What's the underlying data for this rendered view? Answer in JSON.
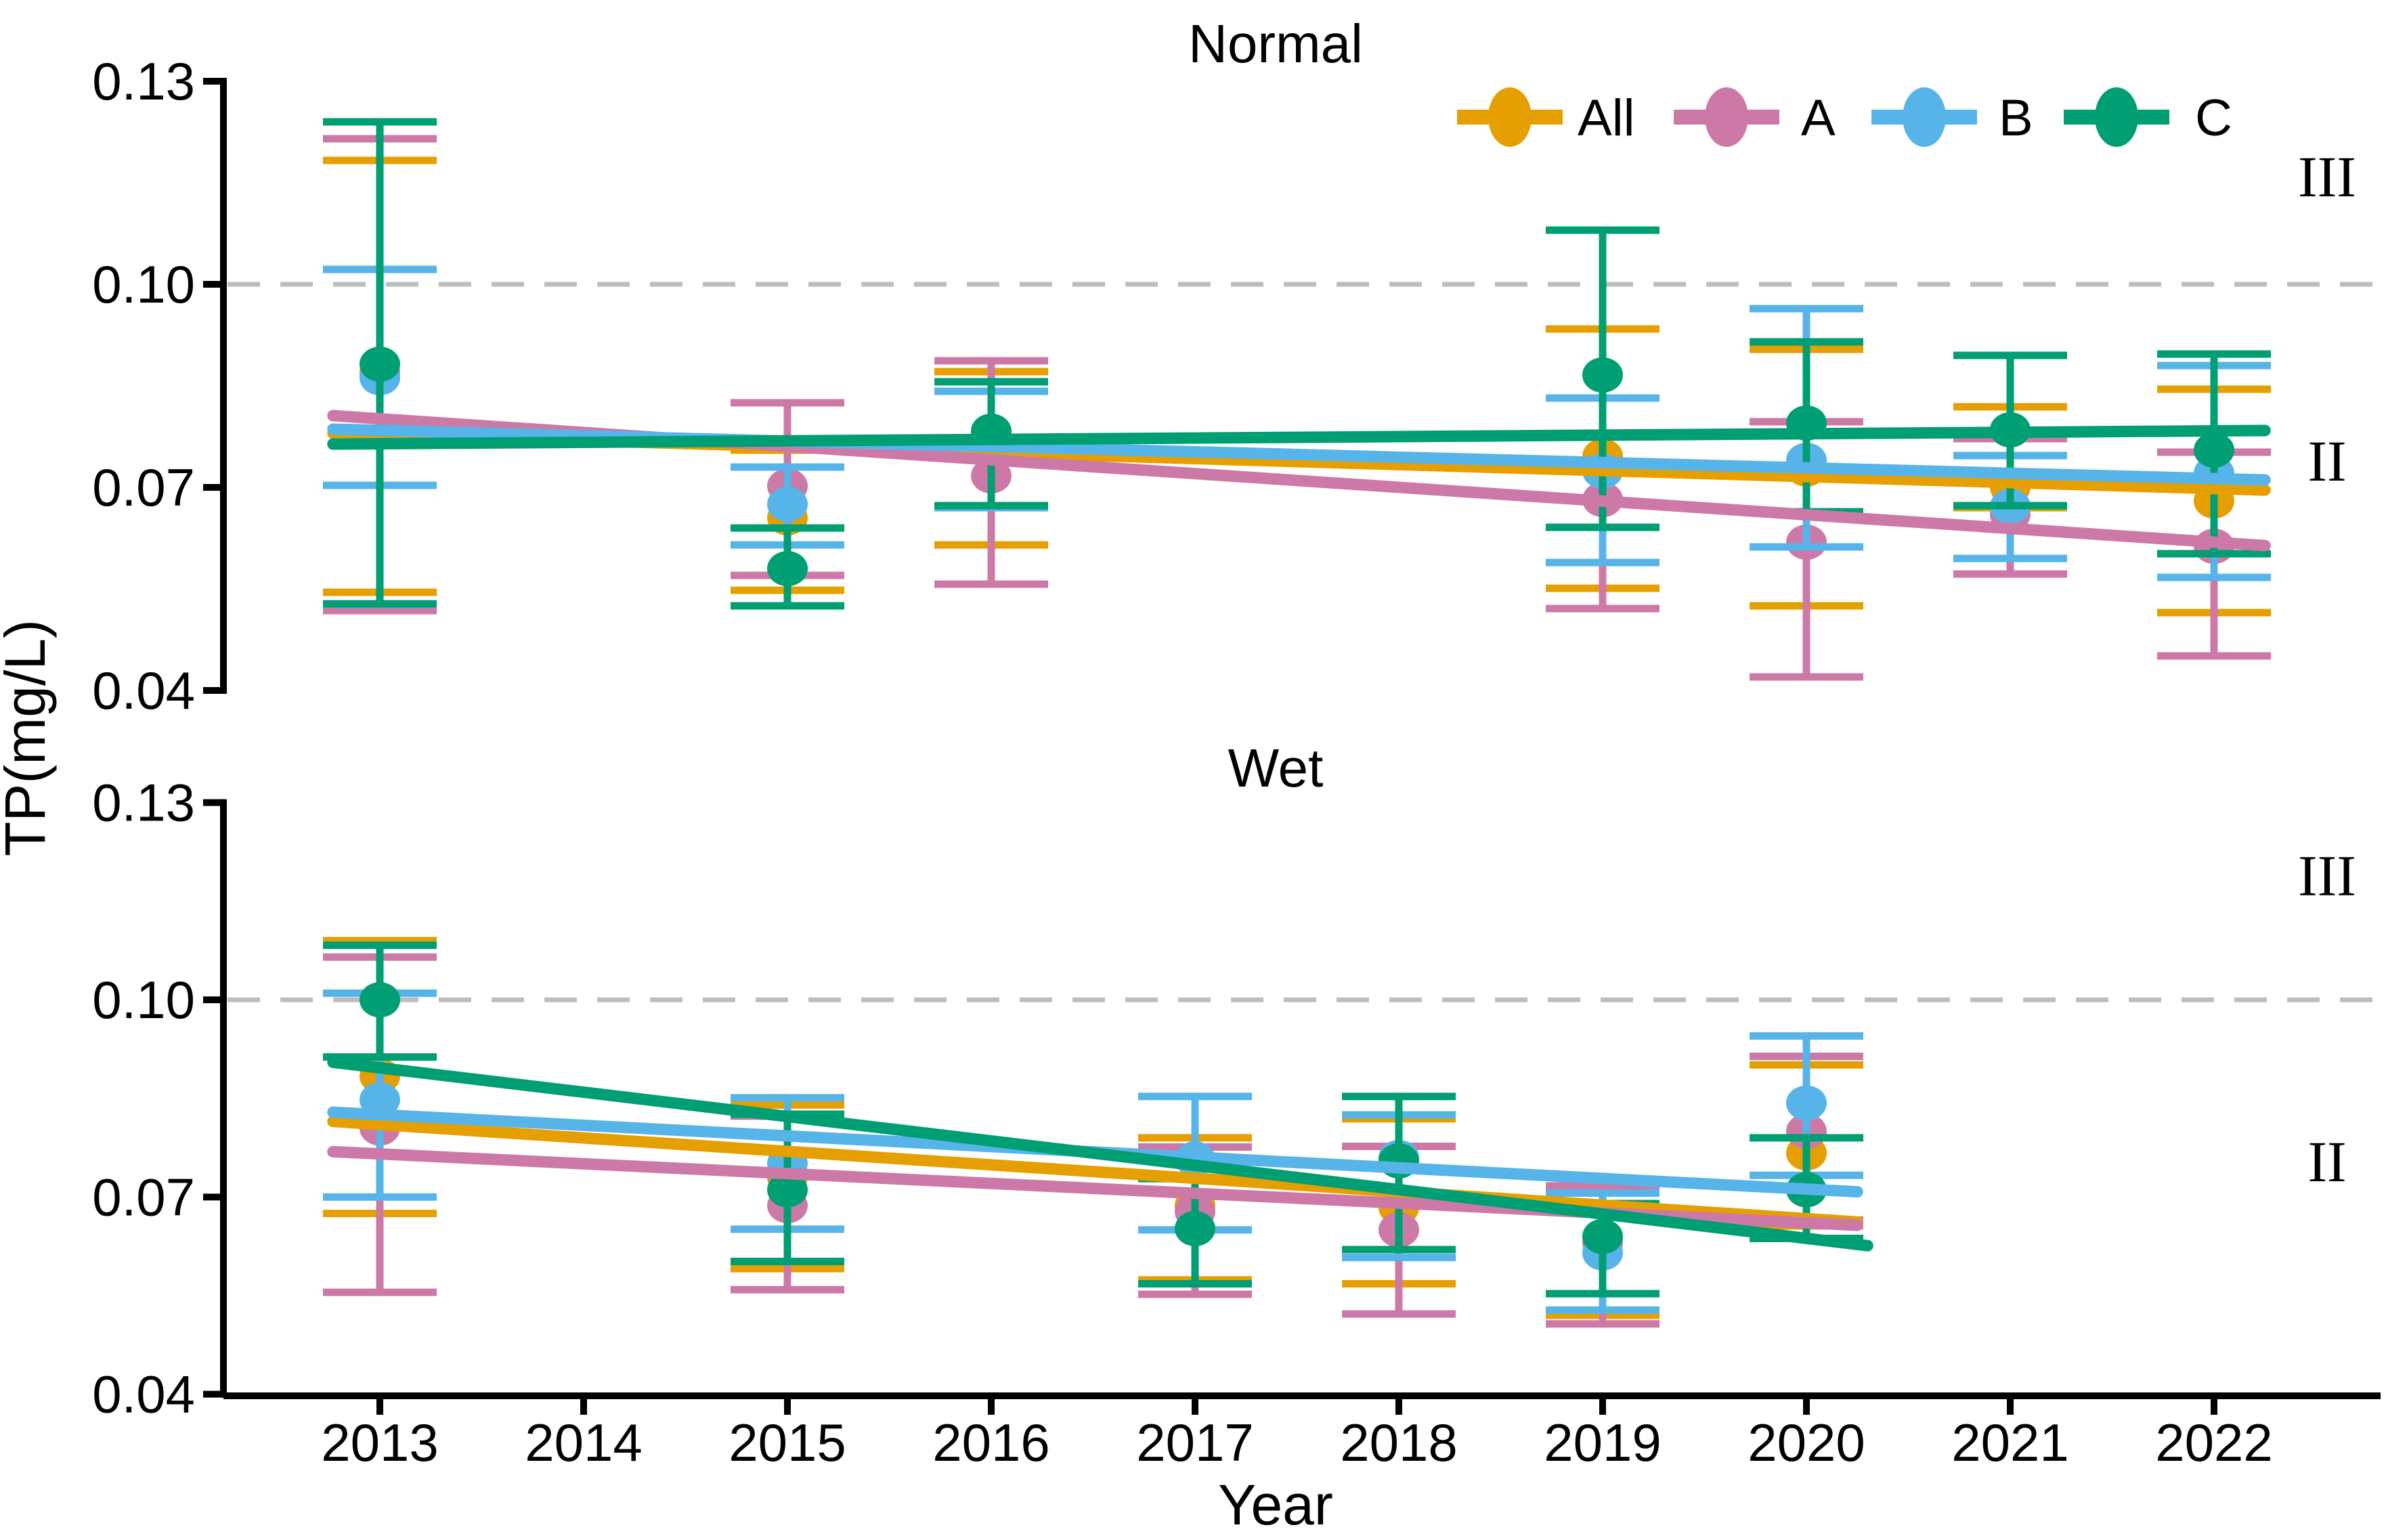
{
  "figure_title": "",
  "ylabel": "TP(mg/L)",
  "xlabel": "Year",
  "reference_color": "#BDBDBD",
  "legend": {
    "items": [
      {
        "label": "All",
        "color": "#E69F00"
      },
      {
        "label": "A",
        "color": "#CC79A7"
      },
      {
        "label": "B",
        "color": "#56B4E9"
      },
      {
        "label": "C",
        "color": "#009E73"
      }
    ]
  },
  "chart_data": [
    {
      "type": "scatter",
      "title": "Normal",
      "xlabel": "Year",
      "ylabel": "TP(mg/L)",
      "ylim": [
        0.04,
        0.13
      ],
      "grid": false,
      "legend_position": "top-right",
      "yticks": [
        {
          "label": "0.13",
          "value": 0.13
        },
        {
          "label": "0.10",
          "value": 0.1
        },
        {
          "label": "0.07",
          "value": 0.07
        },
        {
          "label": "0.04",
          "value": 0.04
        }
      ],
      "xticks": [
        2013,
        2014,
        2015,
        2016,
        2017,
        2018,
        2019,
        2020,
        2021,
        2022
      ],
      "reference_line": 0.1,
      "zone_labels": [
        {
          "text": "III",
          "y": 0.116
        },
        {
          "text": "II",
          "y": 0.074
        }
      ],
      "series": [
        {
          "name": "All",
          "color": "#E69F00",
          "points": [
            {
              "x": 2013,
              "y": 0.087,
              "lo": 0.0545,
              "hi": 0.1183
            },
            {
              "x": 2015,
              "y": 0.0655,
              "lo": 0.0548,
              "hi": 0.0755
            },
            {
              "x": 2016,
              "y": 0.0751,
              "lo": 0.0615,
              "hi": 0.0871
            },
            {
              "x": 2019,
              "y": 0.0746,
              "lo": 0.0551,
              "hi": 0.0934
            },
            {
              "x": 2020,
              "y": 0.0727,
              "lo": 0.0525,
              "hi": 0.0904
            },
            {
              "x": 2021,
              "y": 0.07,
              "lo": 0.067,
              "hi": 0.0819
            },
            {
              "x": 2022,
              "y": 0.068,
              "lo": 0.0515,
              "hi": 0.0845
            }
          ],
          "trend": {
            "x1": 2012.77,
            "y1": 0.078,
            "x2": 2022.25,
            "y2": 0.0696
          }
        },
        {
          "name": "A",
          "color": "#CC79A7",
          "points": [
            {
              "x": 2013,
              "y": 0.0868,
              "lo": 0.0518,
              "hi": 0.1215
            },
            {
              "x": 2015,
              "y": 0.0702,
              "lo": 0.057,
              "hi": 0.0825
            },
            {
              "x": 2016,
              "y": 0.0717,
              "lo": 0.0557,
              "hi": 0.0887
            },
            {
              "x": 2019,
              "y": 0.0682,
              "lo": 0.0521,
              "hi": 0.0832
            },
            {
              "x": 2020,
              "y": 0.0619,
              "lo": 0.042,
              "hi": 0.0797
            },
            {
              "x": 2021,
              "y": 0.066,
              "lo": 0.0572,
              "hi": 0.0772
            },
            {
              "x": 2022,
              "y": 0.0613,
              "lo": 0.0451,
              "hi": 0.0752
            }
          ],
          "trend": {
            "x1": 2012.77,
            "y1": 0.0806,
            "x2": 2022.25,
            "y2": 0.0614
          }
        },
        {
          "name": "B",
          "color": "#56B4E9",
          "points": [
            {
              "x": 2013,
              "y": 0.0862,
              "lo": 0.0703,
              "hi": 0.1022
            },
            {
              "x": 2015,
              "y": 0.0675,
              "lo": 0.0615,
              "hi": 0.073
            },
            {
              "x": 2016,
              "y": 0.0762,
              "lo": 0.067,
              "hi": 0.0842
            },
            {
              "x": 2019,
              "y": 0.0724,
              "lo": 0.0589,
              "hi": 0.0832
            },
            {
              "x": 2020,
              "y": 0.074,
              "lo": 0.0612,
              "hi": 0.0964
            },
            {
              "x": 2021,
              "y": 0.0672,
              "lo": 0.0595,
              "hi": 0.0747
            },
            {
              "x": 2022,
              "y": 0.0721,
              "lo": 0.0567,
              "hi": 0.088
            }
          ],
          "trend": {
            "x1": 2012.77,
            "y1": 0.0786,
            "x2": 2022.25,
            "y2": 0.0711
          }
        },
        {
          "name": "C",
          "color": "#009E73",
          "points": [
            {
              "x": 2013,
              "y": 0.0882,
              "lo": 0.0528,
              "hi": 0.124
            },
            {
              "x": 2015,
              "y": 0.058,
              "lo": 0.0525,
              "hi": 0.064
            },
            {
              "x": 2016,
              "y": 0.0783,
              "lo": 0.0673,
              "hi": 0.0856
            },
            {
              "x": 2019,
              "y": 0.0866,
              "lo": 0.0641,
              "hi": 0.108
            },
            {
              "x": 2020,
              "y": 0.0795,
              "lo": 0.0664,
              "hi": 0.0915
            },
            {
              "x": 2021,
              "y": 0.0785,
              "lo": 0.0673,
              "hi": 0.0895
            },
            {
              "x": 2022,
              "y": 0.0755,
              "lo": 0.0602,
              "hi": 0.0897
            }
          ],
          "trend": {
            "x1": 2012.77,
            "y1": 0.0764,
            "x2": 2022.25,
            "y2": 0.0784
          }
        }
      ]
    },
    {
      "type": "scatter",
      "title": "Wet",
      "xlabel": "Year",
      "ylabel": "TP(mg/L)",
      "ylim": [
        0.04,
        0.13
      ],
      "grid": false,
      "yticks": [
        {
          "label": "0.13",
          "value": 0.13
        },
        {
          "label": "0.10",
          "value": 0.1
        },
        {
          "label": "0.07",
          "value": 0.07
        },
        {
          "label": "0.04",
          "value": 0.04
        }
      ],
      "xticks": [
        2013,
        2014,
        2015,
        2016,
        2017,
        2018,
        2019,
        2020,
        2021,
        2022
      ],
      "reference_line": 0.1,
      "zone_labels": [
        {
          "text": "III",
          "y": 0.119
        },
        {
          "text": "II",
          "y": 0.0755
        }
      ],
      "series": [
        {
          "name": "All",
          "color": "#E69F00",
          "points": [
            {
              "x": 2013,
              "y": 0.0884,
              "lo": 0.0675,
              "hi": 0.109
            },
            {
              "x": 2015,
              "y": 0.073,
              "lo": 0.0591,
              "hi": 0.084
            },
            {
              "x": 2017,
              "y": 0.0687,
              "lo": 0.0574,
              "hi": 0.079
            },
            {
              "x": 2018,
              "y": 0.0684,
              "lo": 0.0568,
              "hi": 0.0819
            },
            {
              "x": 2019,
              "y": 0.0638,
              "lo": 0.052,
              "hi": 0.0712
            },
            {
              "x": 2020,
              "y": 0.0767,
              "lo": 0.0656,
              "hi": 0.0901
            }
          ],
          "trend": {
            "x1": 2012.77,
            "y1": 0.0815,
            "x2": 2020.25,
            "y2": 0.0662
          }
        },
        {
          "name": "A",
          "color": "#CC79A7",
          "points": [
            {
              "x": 2013,
              "y": 0.0805,
              "lo": 0.0555,
              "hi": 0.1065
            },
            {
              "x": 2015,
              "y": 0.0687,
              "lo": 0.0559,
              "hi": 0.0823
            },
            {
              "x": 2017,
              "y": 0.0678,
              "lo": 0.0552,
              "hi": 0.0776
            },
            {
              "x": 2018,
              "y": 0.065,
              "lo": 0.0522,
              "hi": 0.0777
            },
            {
              "x": 2019,
              "y": 0.063,
              "lo": 0.0507,
              "hi": 0.0717
            },
            {
              "x": 2020,
              "y": 0.08,
              "lo": 0.0665,
              "hi": 0.0914
            }
          ],
          "trend": {
            "x1": 2012.77,
            "y1": 0.0769,
            "x2": 2020.25,
            "y2": 0.0657
          }
        },
        {
          "name": "B",
          "color": "#56B4E9",
          "points": [
            {
              "x": 2013,
              "y": 0.0848,
              "lo": 0.07,
              "hi": 0.101
            },
            {
              "x": 2015,
              "y": 0.0751,
              "lo": 0.0651,
              "hi": 0.0851
            },
            {
              "x": 2017,
              "y": 0.0758,
              "lo": 0.065,
              "hi": 0.0853
            },
            {
              "x": 2018,
              "y": 0.076,
              "lo": 0.0608,
              "hi": 0.0825
            },
            {
              "x": 2019,
              "y": 0.0615,
              "lo": 0.0528,
              "hi": 0.0706
            },
            {
              "x": 2020,
              "y": 0.0843,
              "lo": 0.0733,
              "hi": 0.0945
            }
          ],
          "trend": {
            "x1": 2012.77,
            "y1": 0.0829,
            "x2": 2020.25,
            "y2": 0.0708
          }
        },
        {
          "name": "C",
          "color": "#009E73",
          "points": [
            {
              "x": 2013,
              "y": 0.1,
              "lo": 0.0913,
              "hi": 0.1083
            },
            {
              "x": 2015,
              "y": 0.0711,
              "lo": 0.0602,
              "hi": 0.0826
            },
            {
              "x": 2017,
              "y": 0.0652,
              "lo": 0.0568,
              "hi": 0.0728
            },
            {
              "x": 2018,
              "y": 0.0755,
              "lo": 0.062,
              "hi": 0.0853
            },
            {
              "x": 2019,
              "y": 0.064,
              "lo": 0.0553,
              "hi": 0.069
            },
            {
              "x": 2020,
              "y": 0.0711,
              "lo": 0.0637,
              "hi": 0.079
            }
          ],
          "trend": {
            "x1": 2012.77,
            "y1": 0.0905,
            "x2": 2020.3,
            "y2": 0.0626
          }
        }
      ]
    }
  ]
}
